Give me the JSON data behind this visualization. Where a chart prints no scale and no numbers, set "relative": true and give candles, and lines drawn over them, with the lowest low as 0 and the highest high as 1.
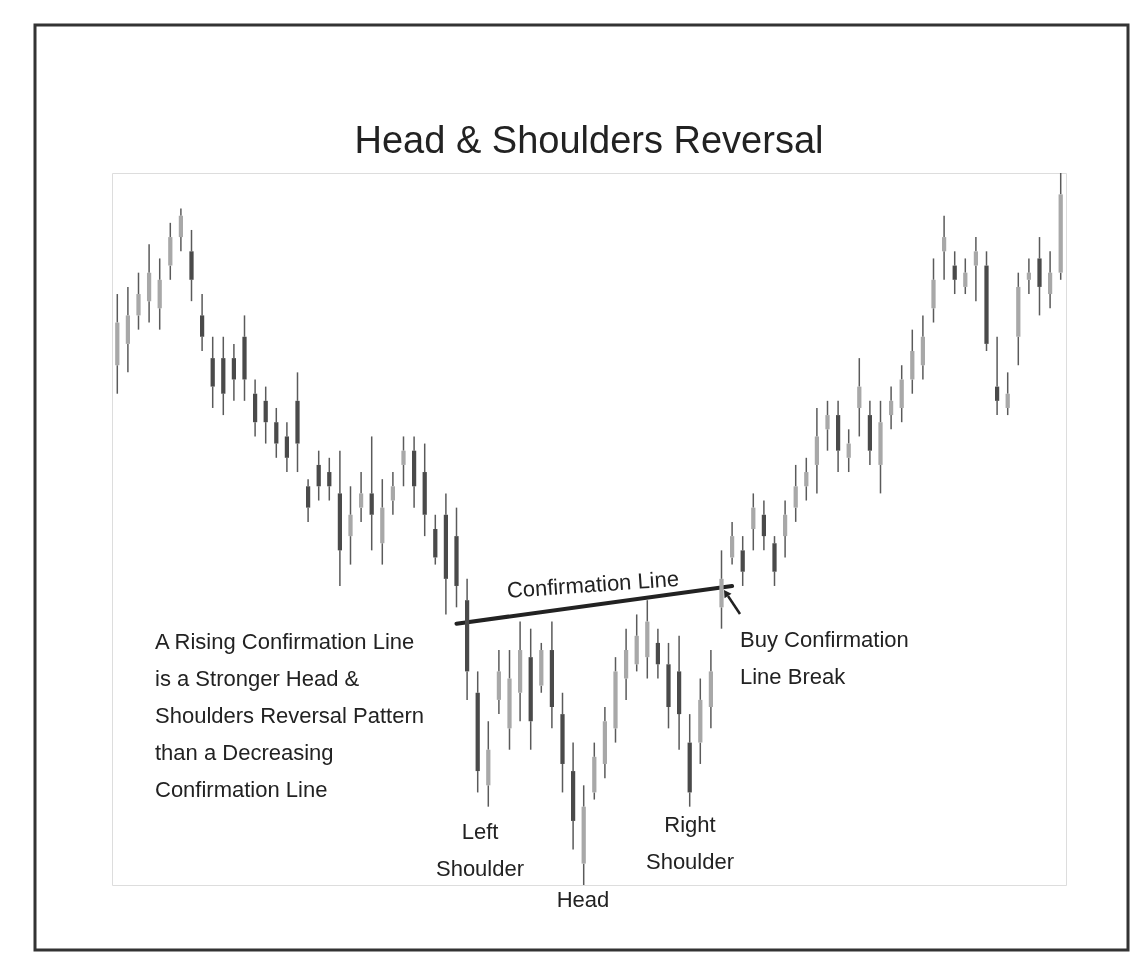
{
  "chart_data": {
    "type": "candlestick",
    "title": "Head & Shoulders Reversal",
    "relative": true,
    "tick_labels": false,
    "color": "#5a5a5a",
    "categories": [
      null,
      null,
      null,
      null,
      null,
      null,
      null,
      null,
      null,
      null,
      null,
      null,
      null,
      null,
      null,
      null,
      null,
      null,
      null,
      null,
      null,
      null,
      null,
      null,
      null,
      null,
      null,
      null,
      null,
      null,
      null,
      null,
      null,
      null,
      null,
      null,
      null,
      null,
      null,
      null,
      null,
      null,
      null,
      null,
      null,
      null,
      null,
      null,
      null,
      null,
      null,
      null,
      null,
      null,
      null,
      null,
      null,
      null,
      null,
      null,
      null,
      null,
      null,
      null,
      null,
      null,
      null,
      null,
      null,
      null,
      null,
      null,
      null,
      null,
      null,
      null,
      null,
      null,
      null,
      null,
      null,
      null,
      null,
      null,
      null,
      null,
      null,
      null,
      null,
      null
    ],
    "ohlc": [
      [
        0.73,
        0.83,
        0.69,
        0.79
      ],
      [
        0.76,
        0.84,
        0.72,
        0.8
      ],
      [
        0.8,
        0.86,
        0.78,
        0.83
      ],
      [
        0.82,
        0.9,
        0.79,
        0.86
      ],
      [
        0.81,
        0.88,
        0.78,
        0.85
      ],
      [
        0.87,
        0.93,
        0.85,
        0.91
      ],
      [
        0.91,
        0.95,
        0.89,
        0.94
      ],
      [
        0.89,
        0.92,
        0.82,
        0.85
      ],
      [
        0.8,
        0.83,
        0.75,
        0.77
      ],
      [
        0.74,
        0.77,
        0.67,
        0.7
      ],
      [
        0.74,
        0.77,
        0.66,
        0.69
      ],
      [
        0.74,
        0.76,
        0.68,
        0.71
      ],
      [
        0.77,
        0.8,
        0.68,
        0.71
      ],
      [
        0.69,
        0.71,
        0.63,
        0.65
      ],
      [
        0.68,
        0.7,
        0.62,
        0.65
      ],
      [
        0.65,
        0.67,
        0.6,
        0.62
      ],
      [
        0.63,
        0.65,
        0.58,
        0.6
      ],
      [
        0.68,
        0.72,
        0.58,
        0.62
      ],
      [
        0.56,
        0.57,
        0.51,
        0.53
      ],
      [
        0.59,
        0.61,
        0.54,
        0.56
      ],
      [
        0.58,
        0.6,
        0.54,
        0.56
      ],
      [
        0.55,
        0.61,
        0.42,
        0.47
      ],
      [
        0.49,
        0.56,
        0.45,
        0.52
      ],
      [
        0.53,
        0.58,
        0.51,
        0.55
      ],
      [
        0.55,
        0.63,
        0.47,
        0.52
      ],
      [
        0.48,
        0.57,
        0.45,
        0.53
      ],
      [
        0.54,
        0.58,
        0.52,
        0.56
      ],
      [
        0.59,
        0.63,
        0.56,
        0.61
      ],
      [
        0.61,
        0.63,
        0.53,
        0.56
      ],
      [
        0.58,
        0.62,
        0.49,
        0.52
      ],
      [
        0.5,
        0.52,
        0.45,
        0.46
      ],
      [
        0.52,
        0.55,
        0.38,
        0.43
      ],
      [
        0.49,
        0.53,
        0.39,
        0.42
      ],
      [
        0.4,
        0.43,
        0.26,
        0.3
      ],
      [
        0.27,
        0.3,
        0.13,
        0.16
      ],
      [
        0.14,
        0.23,
        0.11,
        0.19
      ],
      [
        0.26,
        0.33,
        0.24,
        0.3
      ],
      [
        0.22,
        0.33,
        0.19,
        0.29
      ],
      [
        0.27,
        0.37,
        0.23,
        0.33
      ],
      [
        0.32,
        0.36,
        0.19,
        0.23
      ],
      [
        0.28,
        0.34,
        0.27,
        0.33
      ],
      [
        0.33,
        0.37,
        0.22,
        0.25
      ],
      [
        0.24,
        0.27,
        0.13,
        0.17
      ],
      [
        0.16,
        0.2,
        0.05,
        0.09
      ],
      [
        0.03,
        0.14,
        0.0,
        0.11
      ],
      [
        0.13,
        0.2,
        0.12,
        0.18
      ],
      [
        0.17,
        0.25,
        0.15,
        0.23
      ],
      [
        0.22,
        0.32,
        0.2,
        0.3
      ],
      [
        0.29,
        0.36,
        0.26,
        0.33
      ],
      [
        0.31,
        0.38,
        0.3,
        0.35
      ],
      [
        0.32,
        0.4,
        0.29,
        0.37
      ],
      [
        0.34,
        0.36,
        0.29,
        0.31
      ],
      [
        0.31,
        0.34,
        0.22,
        0.25
      ],
      [
        0.3,
        0.35,
        0.19,
        0.24
      ],
      [
        0.2,
        0.24,
        0.11,
        0.13
      ],
      [
        0.2,
        0.29,
        0.17,
        0.26
      ],
      [
        0.25,
        0.33,
        0.22,
        0.3
      ],
      [
        0.39,
        0.47,
        0.36,
        0.43
      ],
      [
        0.46,
        0.51,
        0.45,
        0.49
      ],
      [
        0.47,
        0.49,
        0.42,
        0.44
      ],
      [
        0.5,
        0.55,
        0.47,
        0.53
      ],
      [
        0.52,
        0.54,
        0.47,
        0.49
      ],
      [
        0.48,
        0.49,
        0.42,
        0.44
      ],
      [
        0.49,
        0.54,
        0.46,
        0.52
      ],
      [
        0.53,
        0.59,
        0.51,
        0.56
      ],
      [
        0.56,
        0.6,
        0.54,
        0.58
      ],
      [
        0.59,
        0.67,
        0.55,
        0.63
      ],
      [
        0.64,
        0.68,
        0.61,
        0.66
      ],
      [
        0.66,
        0.68,
        0.58,
        0.61
      ],
      [
        0.6,
        0.64,
        0.58,
        0.62
      ],
      [
        0.67,
        0.74,
        0.63,
        0.7
      ],
      [
        0.66,
        0.68,
        0.59,
        0.61
      ],
      [
        0.59,
        0.68,
        0.55,
        0.65
      ],
      [
        0.66,
        0.7,
        0.64,
        0.68
      ],
      [
        0.67,
        0.73,
        0.65,
        0.71
      ],
      [
        0.71,
        0.78,
        0.69,
        0.75
      ],
      [
        0.73,
        0.8,
        0.71,
        0.77
      ],
      [
        0.81,
        0.88,
        0.79,
        0.85
      ],
      [
        0.89,
        0.94,
        0.85,
        0.91
      ],
      [
        0.87,
        0.89,
        0.83,
        0.85
      ],
      [
        0.84,
        0.88,
        0.83,
        0.86
      ],
      [
        0.87,
        0.91,
        0.82,
        0.89
      ],
      [
        0.87,
        0.89,
        0.75,
        0.76
      ],
      [
        0.7,
        0.77,
        0.66,
        0.68
      ],
      [
        0.67,
        0.72,
        0.66,
        0.69
      ],
      [
        0.77,
        0.86,
        0.73,
        0.84
      ],
      [
        0.85,
        0.88,
        0.83,
        0.86
      ],
      [
        0.88,
        0.91,
        0.8,
        0.84
      ],
      [
        0.83,
        0.89,
        0.81,
        0.86
      ],
      [
        0.86,
        1.0,
        0.85,
        0.97
      ]
    ],
    "colors": [
      "#a8a8a8",
      "#a8a8a8",
      "#a8a8a8",
      "#a8a8a8",
      "#a8a8a8",
      "#a8a8a8",
      "#a8a8a8",
      "#4a4a4a",
      "#4a4a4a",
      "#4a4a4a",
      "#4a4a4a",
      "#4a4a4a",
      "#4a4a4a",
      "#4a4a4a",
      "#4a4a4a",
      "#4a4a4a",
      "#4a4a4a",
      "#4a4a4a",
      "#4a4a4a",
      "#4a4a4a",
      "#4a4a4a",
      "#4a4a4a",
      "#a8a8a8",
      "#a8a8a8",
      "#4a4a4a",
      "#a8a8a8",
      "#a8a8a8",
      "#a8a8a8",
      "#4a4a4a",
      "#4a4a4a",
      "#4a4a4a",
      "#4a4a4a",
      "#4a4a4a",
      "#4a4a4a",
      "#4a4a4a",
      "#a8a8a8",
      "#a8a8a8",
      "#a8a8a8",
      "#a8a8a8",
      "#4a4a4a",
      "#a8a8a8",
      "#4a4a4a",
      "#4a4a4a",
      "#4a4a4a",
      "#a8a8a8",
      "#a8a8a8",
      "#a8a8a8",
      "#a8a8a8",
      "#a8a8a8",
      "#a8a8a8",
      "#a8a8a8",
      "#4a4a4a",
      "#4a4a4a",
      "#4a4a4a",
      "#4a4a4a",
      "#a8a8a8",
      "#a8a8a8",
      "#a8a8a8",
      "#a8a8a8",
      "#4a4a4a",
      "#a8a8a8",
      "#4a4a4a",
      "#4a4a4a",
      "#a8a8a8",
      "#a8a8a8",
      "#a8a8a8",
      "#a8a8a8",
      "#a8a8a8",
      "#4a4a4a",
      "#a8a8a8",
      "#a8a8a8",
      "#4a4a4a",
      "#a8a8a8",
      "#a8a8a8",
      "#a8a8a8",
      "#a8a8a8",
      "#a8a8a8",
      "#a8a8a8",
      "#a8a8a8",
      "#4a4a4a",
      "#a8a8a8",
      "#a8a8a8",
      "#4a4a4a",
      "#4a4a4a",
      "#a8a8a8",
      "#a8a8a8",
      "#a8a8a8",
      "#4a4a4a",
      "#a8a8a8",
      "#a8a8a8"
    ],
    "series": [
      {
        "type": "line",
        "name": "Confirmation Line",
        "color": "#222222",
        "values": [
          null,
          null,
          null,
          null,
          null,
          null,
          null,
          null,
          null,
          null,
          null,
          null,
          null,
          null,
          null,
          null,
          null,
          null,
          null,
          null,
          null,
          null,
          null,
          null,
          null,
          null,
          null,
          null,
          null,
          null,
          null,
          null,
          0.367,
          null,
          null,
          null,
          null,
          null,
          null,
          null,
          null,
          null,
          null,
          null,
          null,
          null,
          null,
          null,
          null,
          null,
          null,
          null,
          null,
          null,
          null,
          null,
          null,
          null,
          0.42,
          null,
          null,
          null,
          null,
          null,
          null,
          null,
          null,
          null,
          null,
          null,
          null,
          null,
          null,
          null,
          null,
          null,
          null,
          null,
          null,
          null,
          null,
          null,
          null,
          null,
          null,
          null,
          null,
          null,
          null,
          null
        ]
      }
    ],
    "annotations": [
      "A Rising Confirmation Line\nis a Stronger Head &\nShoulders Reversal Pattern\nthan a Decreasing\nConfirmation Line",
      "Left\nShoulder",
      "Head",
      "Right\nShoulder",
      "Buy Confirmation\nLine Break"
    ]
  }
}
